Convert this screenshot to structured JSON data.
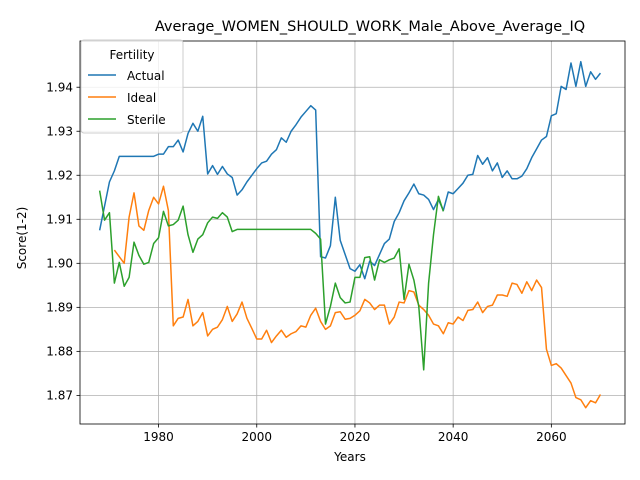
{
  "chart_data": {
    "type": "line",
    "title": "Average_WOMEN_SHOULD_WORK_Male_Above_Average_IQ",
    "xlabel": "Years",
    "ylabel": "Score(1-2)",
    "xlim": [
      1964,
      2075
    ],
    "ylim": [
      1.8635,
      1.9505
    ],
    "x_ticks": [
      1980,
      2000,
      2020,
      2040,
      2060
    ],
    "x_tick_labels": [
      "1980",
      "2000",
      "2020",
      "2040",
      "2060"
    ],
    "y_ticks": [
      1.87,
      1.88,
      1.89,
      1.9,
      1.91,
      1.92,
      1.93,
      1.94
    ],
    "y_tick_labels": [
      "1.87",
      "1.88",
      "1.89",
      "1.90",
      "1.91",
      "1.92",
      "1.93",
      "1.94"
    ],
    "grid": true,
    "legend": {
      "title": "Fertility",
      "placement": "top-left"
    },
    "x": [
      1968,
      1969,
      1970,
      1971,
      1972,
      1973,
      1974,
      1975,
      1976,
      1977,
      1978,
      1979,
      1980,
      1981,
      1982,
      1983,
      1984,
      1985,
      1986,
      1987,
      1988,
      1989,
      1990,
      1991,
      1992,
      1993,
      1994,
      1995,
      1996,
      1997,
      1998,
      1999,
      2000,
      2001,
      2002,
      2003,
      2004,
      2005,
      2006,
      2007,
      2008,
      2009,
      2010,
      2011,
      2012,
      2013,
      2014,
      2015,
      2016,
      2017,
      2018,
      2019,
      2020,
      2021,
      2022,
      2023,
      2024,
      2025,
      2026,
      2027,
      2028,
      2029,
      2030,
      2031,
      2032,
      2033,
      2034,
      2035,
      2036,
      2037,
      2038,
      2039,
      2040,
      2041,
      2042,
      2043,
      2044,
      2045,
      2046,
      2047,
      2048,
      2049,
      2050,
      2051,
      2052,
      2053,
      2054,
      2055,
      2056,
      2057,
      2058,
      2059,
      2060,
      2061,
      2062,
      2063,
      2064,
      2065,
      2066,
      2067,
      2068,
      2069,
      2070
    ],
    "series": [
      {
        "name": "Actual",
        "color": "#1f77b4",
        "values": [
          1.9075,
          1.913,
          1.9185,
          1.921,
          1.9243,
          1.9243,
          1.9243,
          1.9243,
          1.9243,
          1.9243,
          1.9243,
          1.9243,
          1.9248,
          1.9248,
          1.9265,
          1.9265,
          1.928,
          1.9253,
          1.9295,
          1.9318,
          1.93,
          1.9334,
          1.9203,
          1.9222,
          1.9202,
          1.922,
          1.9203,
          1.9195,
          1.9155,
          1.9167,
          1.9185,
          1.92,
          1.9215,
          1.9228,
          1.9232,
          1.9248,
          1.9258,
          1.9285,
          1.9275,
          1.93,
          1.9315,
          1.9332,
          1.9345,
          1.9358,
          1.9348,
          1.9015,
          1.9012,
          1.904,
          1.915,
          1.9052,
          1.902,
          1.8988,
          1.8982,
          1.8997,
          1.8965,
          1.9005,
          1.8995,
          1.902,
          1.9045,
          1.9055,
          1.9095,
          1.9115,
          1.9142,
          1.916,
          1.918,
          1.9158,
          1.9155,
          1.9145,
          1.9122,
          1.9145,
          1.912,
          1.9162,
          1.9158,
          1.917,
          1.9182,
          1.92,
          1.9202,
          1.9245,
          1.9225,
          1.924,
          1.921,
          1.9228,
          1.9195,
          1.921,
          1.9192,
          1.9192,
          1.9198,
          1.9215,
          1.924,
          1.926,
          1.928,
          1.9288,
          1.9335,
          1.934,
          1.9402,
          1.9395,
          1.9455,
          1.9402,
          1.9458,
          1.9402,
          1.9435,
          1.9418,
          1.9432
        ]
      },
      {
        "name": "Ideal",
        "color": "#ff7f0e",
        "values": [
          null,
          null,
          null,
          1.903,
          1.9015,
          1.9,
          1.9105,
          1.916,
          1.9085,
          1.9075,
          1.912,
          1.915,
          1.9135,
          1.9175,
          1.912,
          1.8858,
          1.8875,
          1.8878,
          1.8918,
          1.8858,
          1.8868,
          1.8888,
          1.8835,
          1.885,
          1.8855,
          1.8872,
          1.8902,
          1.8868,
          1.8885,
          1.8912,
          1.8875,
          1.8852,
          1.8828,
          1.8828,
          1.8848,
          1.882,
          1.8835,
          1.8848,
          1.8832,
          1.884,
          1.8845,
          1.8858,
          1.8855,
          1.8882,
          1.8898,
          1.8868,
          1.885,
          1.8858,
          1.8888,
          1.889,
          1.8873,
          1.8875,
          1.8882,
          1.8892,
          1.8918,
          1.891,
          1.8895,
          1.8905,
          1.8905,
          1.8862,
          1.8878,
          1.8912,
          1.891,
          1.8938,
          1.8935,
          1.8905,
          1.8895,
          1.8882,
          1.8862,
          1.8858,
          1.884,
          1.8865,
          1.8862,
          1.8878,
          1.887,
          1.8893,
          1.8895,
          1.8912,
          1.8888,
          1.8902,
          1.8905,
          1.8928,
          1.8928,
          1.8925,
          1.8955,
          1.8952,
          1.8932,
          1.8958,
          1.8938,
          1.8962,
          1.8945,
          1.8805,
          1.8768,
          1.8772,
          1.8762,
          1.8745,
          1.8728,
          1.8695,
          1.869,
          1.8672,
          1.8688,
          1.8683,
          1.8702
        ]
      },
      {
        "name": "Sterile",
        "color": "#2ca02c",
        "values": [
          1.9165,
          1.9098,
          1.9115,
          1.8955,
          1.9002,
          1.8948,
          1.8968,
          1.9048,
          1.9018,
          1.8998,
          1.9002,
          1.9045,
          1.9058,
          1.9118,
          1.9085,
          1.9088,
          1.9098,
          1.913,
          1.9065,
          1.9025,
          1.9055,
          1.9065,
          1.9092,
          1.9105,
          1.9102,
          1.9115,
          1.9105,
          1.9072,
          1.9077,
          1.9077,
          1.9077,
          1.9077,
          1.9077,
          1.9077,
          1.9077,
          1.9077,
          1.9077,
          1.9077,
          1.9077,
          1.9077,
          1.9077,
          1.9077,
          1.9077,
          1.9077,
          1.9068,
          1.9055,
          1.8862,
          1.8902,
          1.8955,
          1.8922,
          1.891,
          1.8912,
          1.8968,
          1.8968,
          1.9013,
          1.9015,
          1.8962,
          1.9008,
          1.9002,
          1.9008,
          1.9012,
          1.9033,
          1.8918,
          1.8998,
          1.8962,
          1.8902,
          1.8758,
          1.8955,
          1.9065,
          1.9152,
          1.9118,
          null,
          null,
          null,
          null,
          null,
          null,
          null,
          null,
          null,
          null,
          null,
          null,
          null,
          null,
          null,
          null,
          null,
          null,
          null,
          null,
          null,
          null,
          null,
          null,
          null,
          null,
          null,
          null,
          null,
          null,
          null,
          null
        ]
      }
    ]
  }
}
